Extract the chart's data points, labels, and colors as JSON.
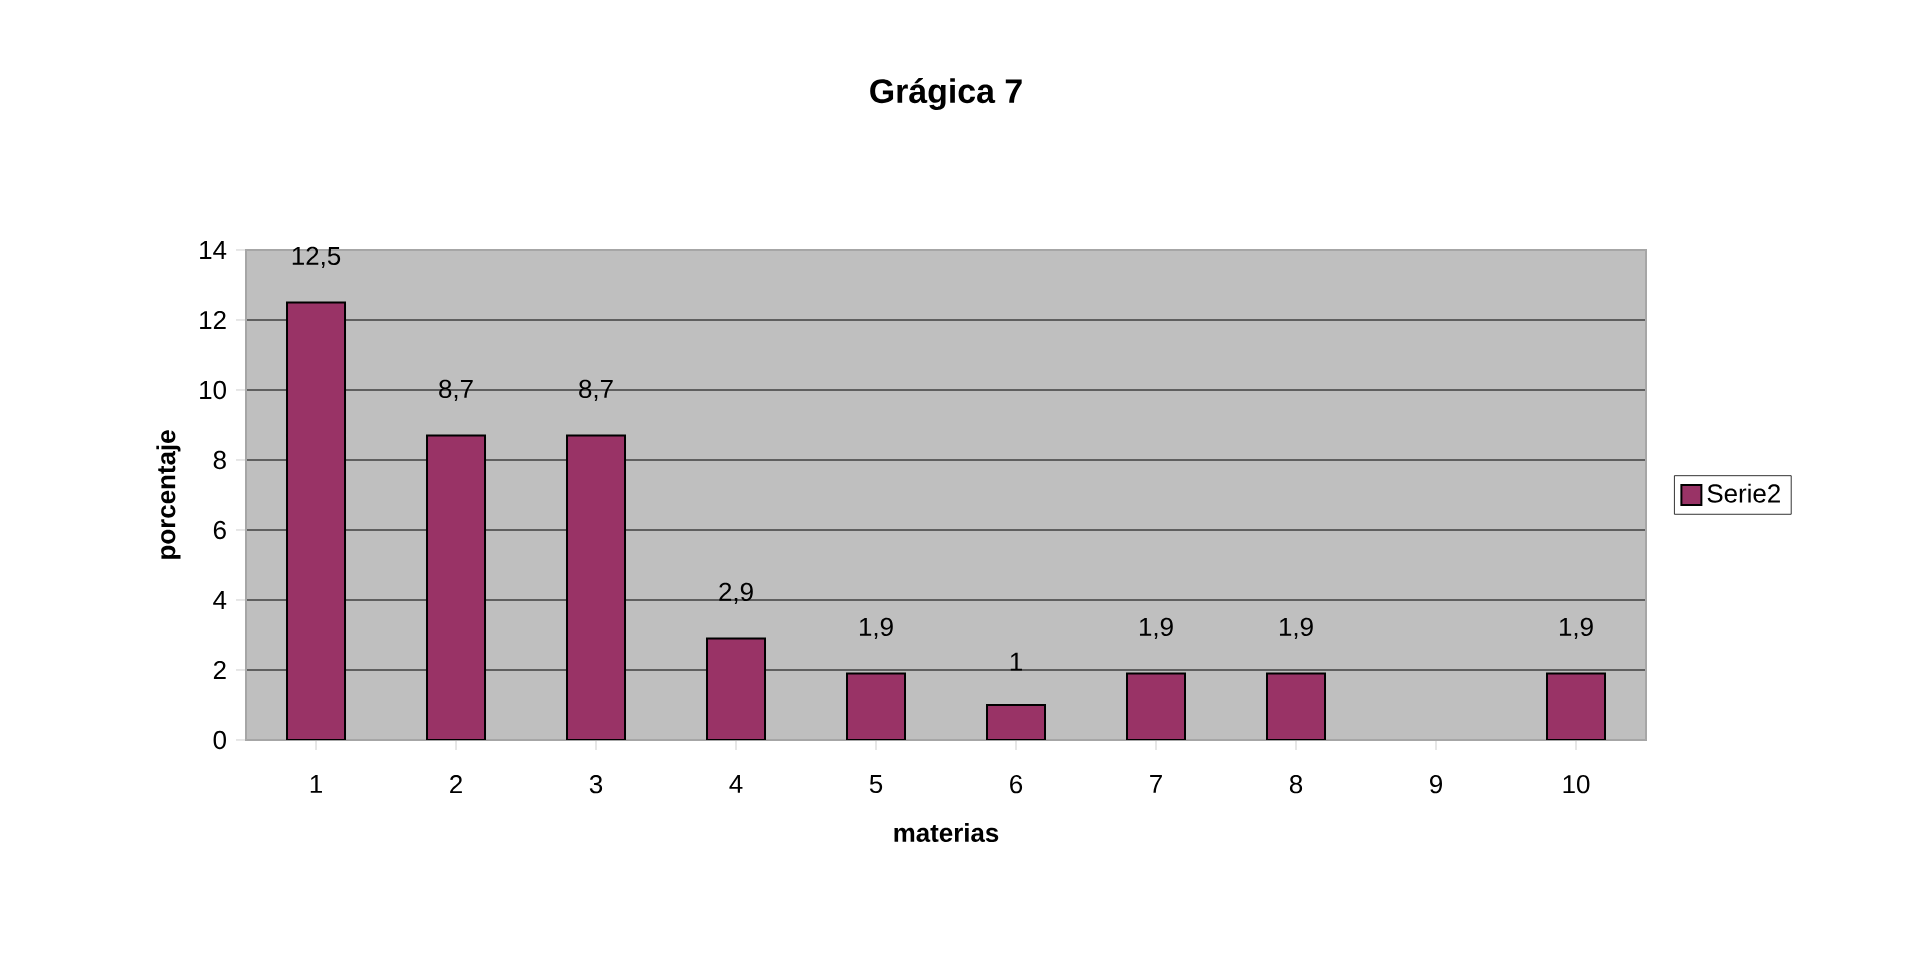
{
  "chart_data": {
    "type": "bar",
    "title": "Grágica 7",
    "xlabel": "materias",
    "ylabel": "porcentaje",
    "categories": [
      "1",
      "2",
      "3",
      "4",
      "5",
      "6",
      "7",
      "8",
      "9",
      "10"
    ],
    "series": [
      {
        "name": "Serie2",
        "color": "#993366",
        "values": [
          12.5,
          8.7,
          8.7,
          2.9,
          1.9,
          1,
          1.9,
          1.9,
          null,
          1.9
        ],
        "value_labels": [
          "12,5",
          "8,7",
          "8,7",
          "2,9",
          "1,9",
          "1",
          "1,9",
          "1,9",
          null,
          "1,9"
        ]
      }
    ],
    "ylim": [
      0,
      14
    ],
    "yticks": [
      0,
      2,
      4,
      6,
      8,
      10,
      12,
      14
    ],
    "grid": "y",
    "legend": "right"
  }
}
